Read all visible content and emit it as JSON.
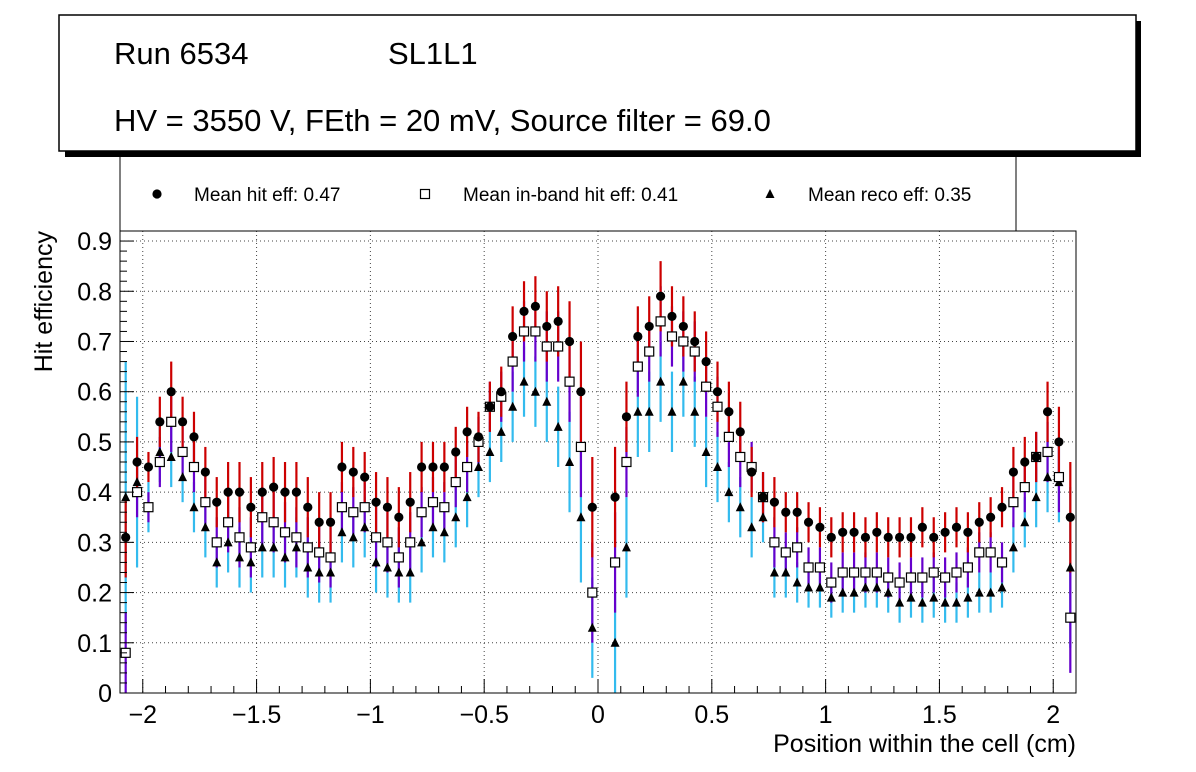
{
  "chart_data": {
    "type": "scatter",
    "title_lines": [
      "Run 6534",
      "SL1L1",
      "HV = 3550 V, FEth = 20 mV, Source filter = 69.0"
    ],
    "xlabel": "Position within the cell (cm)",
    "ylabel": "Hit efficiency",
    "xlim": [
      -2.1,
      2.1
    ],
    "ylim": [
      0,
      0.92
    ],
    "x_ticks": [
      -2,
      -1.5,
      -1,
      -0.5,
      0,
      0.5,
      1,
      1.5,
      2
    ],
    "x_tick_labels": [
      "−2",
      "−1.5",
      "−1",
      "−0.5",
      "0",
      "0.5",
      "1",
      "1.5",
      "2"
    ],
    "y_ticks": [
      0,
      0.1,
      0.2,
      0.3,
      0.4,
      0.5,
      0.6,
      0.7,
      0.8,
      0.9
    ],
    "y_tick_labels": [
      "0",
      "0.1",
      "0.2",
      "0.3",
      "0.4",
      "0.5",
      "0.6",
      "0.7",
      "0.8",
      "0.9"
    ],
    "grid": true,
    "legend_position": "top",
    "x": [
      -2.075,
      -2.025,
      -1.975,
      -1.925,
      -1.875,
      -1.825,
      -1.775,
      -1.725,
      -1.675,
      -1.625,
      -1.575,
      -1.525,
      -1.475,
      -1.425,
      -1.375,
      -1.325,
      -1.275,
      -1.225,
      -1.175,
      -1.125,
      -1.075,
      -1.025,
      -0.975,
      -0.925,
      -0.875,
      -0.825,
      -0.775,
      -0.725,
      -0.675,
      -0.625,
      -0.575,
      -0.525,
      -0.475,
      -0.425,
      -0.375,
      -0.325,
      -0.275,
      -0.225,
      -0.175,
      -0.125,
      -0.075,
      -0.025,
      0.025,
      0.075,
      0.125,
      0.175,
      0.225,
      0.275,
      0.325,
      0.375,
      0.425,
      0.475,
      0.525,
      0.575,
      0.625,
      0.675,
      0.725,
      0.775,
      0.825,
      0.875,
      0.925,
      0.975,
      1.025,
      1.075,
      1.125,
      1.175,
      1.225,
      1.275,
      1.325,
      1.375,
      1.425,
      1.475,
      1.525,
      1.575,
      1.625,
      1.675,
      1.725,
      1.775,
      1.825,
      1.875,
      1.925,
      1.975,
      2.025,
      2.075
    ],
    "series": [
      {
        "name": "Mean hit  eff: 0.47",
        "marker": "circle",
        "error_color": "#cc0000",
        "values": [
          0.31,
          0.46,
          0.45,
          0.54,
          0.6,
          0.54,
          0.51,
          0.44,
          0.38,
          0.4,
          0.4,
          0.37,
          0.4,
          0.41,
          0.4,
          0.4,
          0.37,
          0.34,
          0.34,
          0.45,
          0.44,
          0.43,
          0.38,
          0.37,
          0.35,
          0.38,
          0.45,
          0.45,
          0.45,
          0.48,
          0.52,
          0.51,
          0.57,
          0.6,
          0.71,
          0.76,
          0.77,
          0.73,
          0.74,
          0.7,
          0.6,
          0.37,
          null,
          0.39,
          0.55,
          0.71,
          0.73,
          0.79,
          0.75,
          0.73,
          0.7,
          0.66,
          0.6,
          0.56,
          0.52,
          0.44,
          0.39,
          0.38,
          0.36,
          0.36,
          0.34,
          0.33,
          0.31,
          0.32,
          0.32,
          0.31,
          0.32,
          0.31,
          0.31,
          0.31,
          0.33,
          0.31,
          0.32,
          0.33,
          0.32,
          0.34,
          0.35,
          0.37,
          0.44,
          0.46,
          0.47,
          0.56,
          0.5,
          0.35
        ]
      },
      {
        "name": "Mean in-band hit eff: 0.41",
        "marker": "open-square",
        "error_color": "#6600cc",
        "values": [
          0.08,
          0.4,
          0.37,
          0.46,
          0.54,
          0.48,
          0.45,
          0.38,
          0.3,
          0.34,
          0.31,
          0.29,
          0.35,
          0.34,
          0.32,
          0.31,
          0.29,
          0.28,
          0.27,
          0.37,
          0.36,
          0.37,
          0.31,
          0.3,
          0.27,
          0.3,
          0.36,
          0.38,
          0.37,
          0.42,
          0.45,
          0.5,
          0.57,
          0.59,
          0.66,
          0.72,
          0.72,
          0.69,
          0.69,
          0.62,
          0.49,
          0.2,
          null,
          0.26,
          0.46,
          0.65,
          0.68,
          0.74,
          0.71,
          0.7,
          0.68,
          0.61,
          0.57,
          0.51,
          0.47,
          0.45,
          0.39,
          0.3,
          0.28,
          0.29,
          0.25,
          0.25,
          0.22,
          0.24,
          0.24,
          0.24,
          0.24,
          0.23,
          0.22,
          0.23,
          0.23,
          0.24,
          0.23,
          0.24,
          0.25,
          0.28,
          0.28,
          0.26,
          0.38,
          0.41,
          0.47,
          0.48,
          0.43,
          0.15
        ]
      },
      {
        "name": "Mean reco eff: 0.35",
        "marker": "triangle",
        "error_color": "#33bbee",
        "values": [
          0.39,
          0.42,
          0.37,
          0.48,
          0.47,
          0.43,
          0.37,
          0.33,
          0.26,
          0.3,
          0.27,
          0.26,
          0.29,
          0.29,
          0.27,
          0.29,
          0.25,
          0.24,
          0.24,
          0.32,
          0.31,
          0.33,
          0.26,
          0.25,
          0.24,
          0.24,
          0.3,
          0.33,
          0.32,
          0.35,
          0.39,
          0.45,
          0.48,
          0.52,
          0.57,
          0.62,
          0.6,
          0.58,
          0.53,
          0.46,
          0.35,
          0.13,
          null,
          0.1,
          0.29,
          0.56,
          0.56,
          0.62,
          0.56,
          0.62,
          0.56,
          0.48,
          0.45,
          0.4,
          0.37,
          0.33,
          0.35,
          0.24,
          0.24,
          0.22,
          0.21,
          0.21,
          0.19,
          0.2,
          0.2,
          0.21,
          0.21,
          0.2,
          0.18,
          0.19,
          0.18,
          0.19,
          0.18,
          0.18,
          0.19,
          0.2,
          0.2,
          0.21,
          0.29,
          0.34,
          0.39,
          0.43,
          0.42,
          0.25
        ]
      }
    ],
    "error_bar_half_widths": [
      [
        0.08,
        0.05,
        0.03,
        0.05,
        0.06,
        0.05,
        0.05,
        0.05,
        0.05,
        0.06,
        0.06,
        0.06,
        0.06,
        0.06,
        0.06,
        0.06,
        0.06,
        0.06,
        0.06,
        0.05,
        0.05,
        0.05,
        0.06,
        0.06,
        0.06,
        0.06,
        0.05,
        0.05,
        0.05,
        0.05,
        0.05,
        0.05,
        0.05,
        0.05,
        0.06,
        0.06,
        0.06,
        0.07,
        0.07,
        0.08,
        0.1,
        0.1,
        null,
        0.1,
        0.07,
        0.06,
        0.06,
        0.07,
        0.06,
        0.06,
        0.06,
        0.06,
        0.06,
        0.06,
        0.06,
        0.05,
        0.05,
        0.05,
        0.04,
        0.04,
        0.04,
        0.04,
        0.04,
        0.04,
        0.04,
        0.04,
        0.04,
        0.04,
        0.04,
        0.04,
        0.04,
        0.04,
        0.04,
        0.04,
        0.04,
        0.04,
        0.04,
        0.04,
        0.05,
        0.05,
        0.05,
        0.06,
        0.07,
        0.11
      ],
      [
        0.08,
        0.05,
        0.03,
        0.05,
        0.06,
        0.05,
        0.05,
        0.05,
        0.05,
        0.06,
        0.06,
        0.06,
        0.06,
        0.06,
        0.06,
        0.06,
        0.06,
        0.06,
        0.06,
        0.05,
        0.05,
        0.05,
        0.06,
        0.06,
        0.06,
        0.06,
        0.05,
        0.05,
        0.05,
        0.05,
        0.05,
        0.05,
        0.05,
        0.05,
        0.06,
        0.06,
        0.06,
        0.07,
        0.07,
        0.08,
        0.1,
        0.1,
        null,
        0.1,
        0.07,
        0.06,
        0.06,
        0.07,
        0.06,
        0.06,
        0.06,
        0.06,
        0.06,
        0.06,
        0.06,
        0.05,
        0.05,
        0.05,
        0.04,
        0.04,
        0.04,
        0.04,
        0.04,
        0.04,
        0.04,
        0.04,
        0.04,
        0.04,
        0.04,
        0.04,
        0.04,
        0.04,
        0.04,
        0.04,
        0.04,
        0.04,
        0.04,
        0.04,
        0.05,
        0.05,
        0.05,
        0.06,
        0.07,
        0.11
      ],
      [
        0.27,
        0.17,
        0.05,
        0.06,
        0.06,
        0.05,
        0.05,
        0.06,
        0.05,
        0.06,
        0.06,
        0.06,
        0.06,
        0.06,
        0.06,
        0.06,
        0.06,
        0.06,
        0.06,
        0.06,
        0.06,
        0.06,
        0.06,
        0.06,
        0.06,
        0.06,
        0.06,
        0.06,
        0.06,
        0.06,
        0.06,
        0.06,
        0.06,
        0.06,
        0.07,
        0.07,
        0.07,
        0.08,
        0.08,
        0.1,
        0.13,
        0.1,
        null,
        0.1,
        0.1,
        0.09,
        0.08,
        0.08,
        0.08,
        0.07,
        0.07,
        0.07,
        0.07,
        0.06,
        0.06,
        0.06,
        0.05,
        0.05,
        0.05,
        0.04,
        0.04,
        0.04,
        0.04,
        0.04,
        0.04,
        0.04,
        0.04,
        0.04,
        0.04,
        0.04,
        0.04,
        0.04,
        0.04,
        0.04,
        0.04,
        0.04,
        0.04,
        0.04,
        0.05,
        0.05,
        0.06,
        0.07,
        0.08,
        0.16
      ]
    ]
  }
}
